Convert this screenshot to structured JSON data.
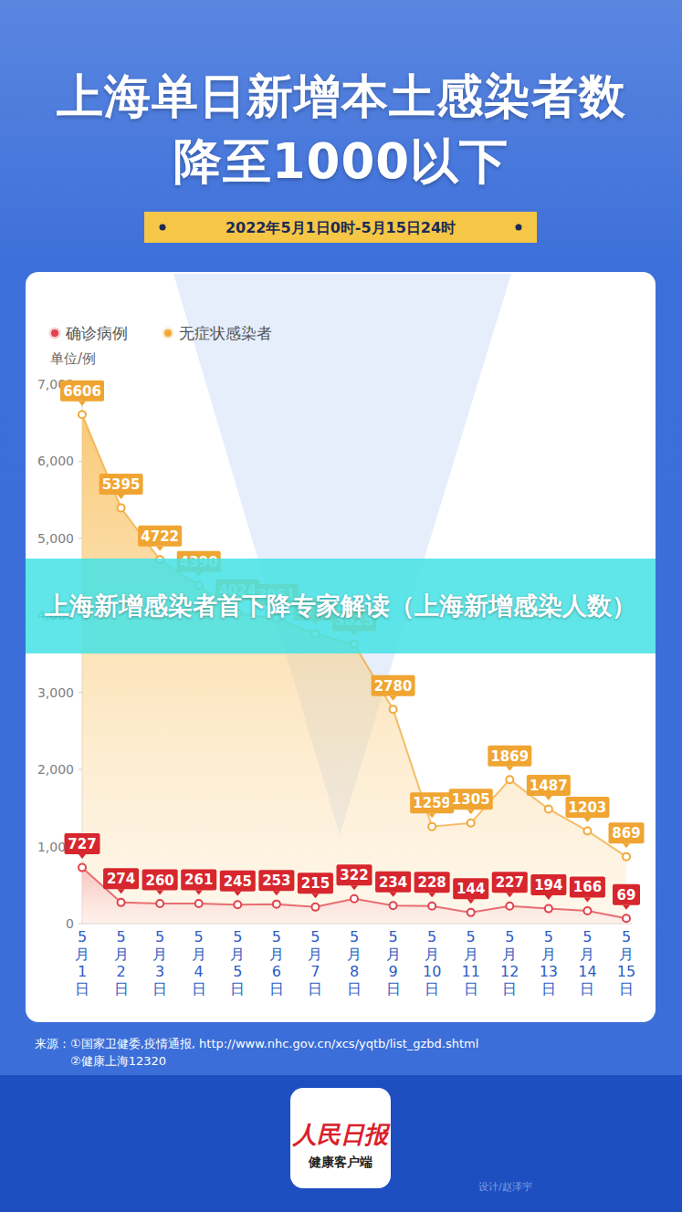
{
  "chart_data": {
    "type": "line",
    "title": [
      "上海单日新增本土感染者数",
      "降至1000以下"
    ],
    "subtitle": "2022年5月1日0时-5月15日24时",
    "y_label": "单位/例",
    "categories": [
      "5月1日",
      "5月2日",
      "5月3日",
      "5月4日",
      "5月5日",
      "5月6日",
      "5月7日",
      "5月8日",
      "5月9日",
      "5月10日",
      "5月11日",
      "5月12日",
      "5月13日",
      "5月14日",
      "5月15日"
    ],
    "series": [
      {
        "name": "确诊病例",
        "color": "#e0434b",
        "values": [
          727,
          274,
          260,
          261,
          245,
          253,
          215,
          322,
          234,
          228,
          144,
          227,
          194,
          166,
          69
        ]
      },
      {
        "name": "无症状感染者",
        "color": "#f2a93b",
        "values": [
          6606,
          5395,
          4722,
          4390,
          4024,
          3961,
          3760,
          3625,
          2780,
          1259,
          1305,
          1869,
          1487,
          1203,
          869
        ]
      }
    ],
    "ylim": [
      0,
      7000
    ],
    "yticks": [
      0,
      {
        "value": 1000,
        "label": "1,000"
      },
      {
        "value": 2000,
        "label": "2,000"
      },
      {
        "value": 3000,
        "label": "3,000"
      },
      {
        "value": 4000,
        "label": "4,000"
      },
      {
        "value": 5000,
        "label": "5,000"
      },
      {
        "value": 6000,
        "label": "6,000"
      },
      {
        "value": 7000,
        "label": "7,000"
      }
    ],
    "grid": false,
    "legend": "top-left",
    "data_labels": true,
    "marker": "circle",
    "source": [
      "来源：①国家卫健委,疫情通报, http://www.nhc.gov.cn/xcs/yqtb/list_gzbd.shtml",
      "②健康上海12320"
    ]
  },
  "overlay_caption": "上海新增感染者首下降专家解读（上海新增感染人数）",
  "branding": {
    "logo": "人民日报",
    "logo_subtitle": "健康客户端",
    "designer": "设计/赵泽宇"
  }
}
